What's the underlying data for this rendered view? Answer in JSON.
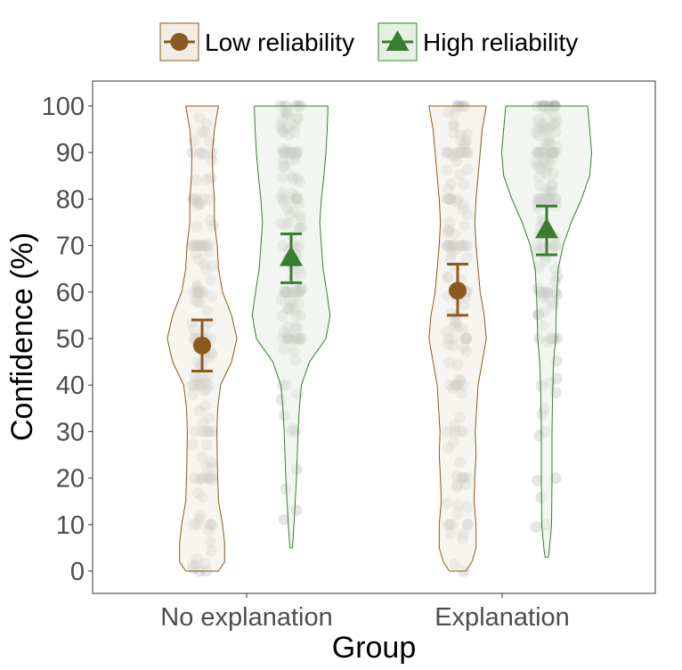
{
  "chart_data": {
    "type": "violin",
    "xlabel": "Group",
    "ylabel": "Confidence (%)",
    "ylim": [
      0,
      100
    ],
    "yticks": [
      0,
      10,
      20,
      30,
      40,
      50,
      60,
      70,
      80,
      90,
      100
    ],
    "categories": [
      "No explanation",
      "Explanation"
    ],
    "grid": false,
    "legend_position": "top",
    "series": [
      {
        "name": "Low reliability",
        "marker": "circle",
        "color": "#8B5A1E",
        "fill": "#f1ece4",
        "means": [
          48.5,
          60.3
        ],
        "ci": [
          [
            43,
            54
          ],
          [
            55,
            66
          ]
        ],
        "violin_halfwidths": [
          [
            [
              0,
              0.4
            ],
            [
              2,
              0.55
            ],
            [
              6,
              0.55
            ],
            [
              10,
              0.5
            ],
            [
              15,
              0.4
            ],
            [
              20,
              0.38
            ],
            [
              25,
              0.37
            ],
            [
              30,
              0.36
            ],
            [
              35,
              0.38
            ],
            [
              40,
              0.45
            ],
            [
              45,
              0.72
            ],
            [
              50,
              0.85
            ],
            [
              55,
              0.72
            ],
            [
              60,
              0.5
            ],
            [
              65,
              0.4
            ],
            [
              70,
              0.37
            ],
            [
              75,
              0.3
            ],
            [
              80,
              0.3
            ],
            [
              85,
              0.26
            ],
            [
              90,
              0.25
            ],
            [
              95,
              0.3
            ],
            [
              100,
              0.4
            ]
          ],
          [
            [
              0,
              0.2
            ],
            [
              2,
              0.35
            ],
            [
              5,
              0.45
            ],
            [
              10,
              0.45
            ],
            [
              15,
              0.4
            ],
            [
              20,
              0.42
            ],
            [
              25,
              0.45
            ],
            [
              30,
              0.43
            ],
            [
              40,
              0.5
            ],
            [
              45,
              0.6
            ],
            [
              50,
              0.7
            ],
            [
              55,
              0.65
            ],
            [
              60,
              0.55
            ],
            [
              65,
              0.5
            ],
            [
              70,
              0.45
            ],
            [
              75,
              0.42
            ],
            [
              80,
              0.45
            ],
            [
              85,
              0.5
            ],
            [
              90,
              0.55
            ],
            [
              95,
              0.6
            ],
            [
              100,
              0.7
            ]
          ]
        ]
      },
      {
        "name": "High reliability",
        "marker": "triangle",
        "color": "#3A7D32",
        "fill": "#e5f0e3",
        "means": [
          67.5,
          73.5
        ],
        "ci": [
          [
            62,
            72.5
          ],
          [
            68,
            78.5
          ]
        ],
        "violin_halfwidths": [
          [
            [
              5,
              0.03
            ],
            [
              10,
              0.07
            ],
            [
              15,
              0.1
            ],
            [
              20,
              0.13
            ],
            [
              25,
              0.15
            ],
            [
              30,
              0.17
            ],
            [
              35,
              0.2
            ],
            [
              40,
              0.25
            ],
            [
              45,
              0.45
            ],
            [
              50,
              0.85
            ],
            [
              55,
              0.95
            ],
            [
              60,
              0.87
            ],
            [
              65,
              0.78
            ],
            [
              70,
              0.74
            ],
            [
              75,
              0.7
            ],
            [
              80,
              0.74
            ],
            [
              85,
              0.8
            ],
            [
              90,
              0.85
            ],
            [
              95,
              0.88
            ],
            [
              100,
              0.9
            ]
          ],
          [
            [
              3,
              0.04
            ],
            [
              5,
              0.07
            ],
            [
              10,
              0.12
            ],
            [
              20,
              0.13
            ],
            [
              30,
              0.13
            ],
            [
              35,
              0.14
            ],
            [
              40,
              0.15
            ],
            [
              45,
              0.17
            ],
            [
              50,
              0.22
            ],
            [
              55,
              0.23
            ],
            [
              60,
              0.25
            ],
            [
              65,
              0.28
            ],
            [
              70,
              0.4
            ],
            [
              75,
              0.6
            ],
            [
              80,
              0.85
            ],
            [
              85,
              1.05
            ],
            [
              90,
              1.1
            ],
            [
              95,
              1.05
            ],
            [
              100,
              1.0
            ]
          ]
        ]
      }
    ],
    "points_color": "#a7a7a1"
  }
}
